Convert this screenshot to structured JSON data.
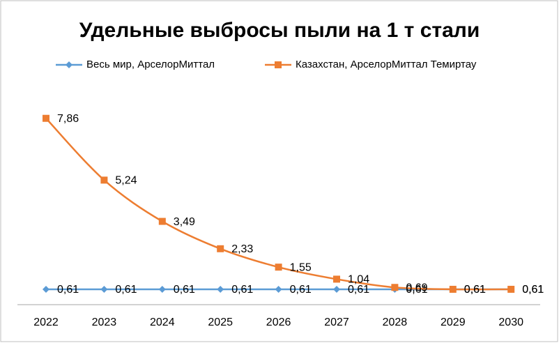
{
  "chart_data": {
    "type": "line",
    "title": "Удельные выбросы пыли на 1 т стали",
    "categories": [
      "2022",
      "2023",
      "2024",
      "2025",
      "2026",
      "2027",
      "2028",
      "2029",
      "2030"
    ],
    "series": [
      {
        "name": "Весь мир, АрселорМиттал",
        "color": "#5b9bd5",
        "marker": "diamond",
        "values": [
          0.61,
          0.61,
          0.61,
          0.61,
          0.61,
          0.61,
          0.61,
          0.61,
          0.61
        ],
        "value_labels": [
          "0,61",
          "0,61",
          "0,61",
          "0,61",
          "0,61",
          "0,61",
          "0,61",
          "0,61",
          "0,61"
        ]
      },
      {
        "name": "Казахстан, АрселорМиттал Темиртау",
        "color": "#ed7d31",
        "marker": "square",
        "values": [
          7.86,
          5.24,
          3.49,
          2.33,
          1.55,
          1.04,
          0.69,
          0.61,
          0.61
        ],
        "value_labels": [
          "7,86",
          "5,24",
          "3,49",
          "2,33",
          "1,55",
          "1,04",
          "0,69",
          "0,61",
          "0,61"
        ]
      }
    ],
    "ylim": [
      0,
      8
    ],
    "legend": "top",
    "smooth": true
  }
}
